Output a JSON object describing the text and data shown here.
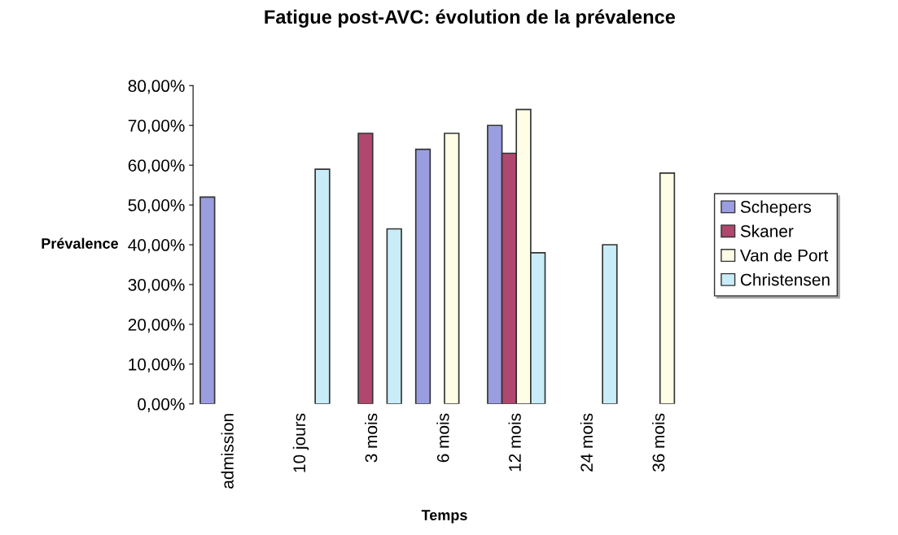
{
  "chart_data": {
    "type": "bar",
    "title": "Fatigue post-AVC: évolution de la prévalence",
    "xlabel": "Temps",
    "ylabel": "Prévalence",
    "categories": [
      "admission",
      "10 jours",
      "3 mois",
      "6 mois",
      "12 mois",
      "24 mois",
      "36 mois"
    ],
    "series": [
      {
        "name": "Schepers",
        "color": "#9a9ee0",
        "values": [
          52,
          null,
          null,
          64,
          70,
          null,
          null
        ]
      },
      {
        "name": "Skaner",
        "color": "#b0476e",
        "values": [
          null,
          null,
          68,
          null,
          63,
          null,
          null
        ]
      },
      {
        "name": "Van de Port",
        "color": "#fffde6",
        "values": [
          null,
          null,
          null,
          68,
          74,
          null,
          58
        ]
      },
      {
        "name": "Christensen",
        "color": "#c8ecf8",
        "values": [
          null,
          59,
          44,
          null,
          38,
          40,
          null
        ]
      }
    ],
    "ylim": [
      0,
      80
    ],
    "yticks": [
      {
        "value": 0,
        "label": "0,00%"
      },
      {
        "value": 10,
        "label": "10,00%"
      },
      {
        "value": 20,
        "label": "20,00%"
      },
      {
        "value": 30,
        "label": "30,00%"
      },
      {
        "value": 40,
        "label": "40,00%"
      },
      {
        "value": 50,
        "label": "50,00%"
      },
      {
        "value": 60,
        "label": "60,00%"
      },
      {
        "value": 70,
        "label": "70,00%"
      },
      {
        "value": 80,
        "label": "80,00%"
      }
    ],
    "legend": "right",
    "grid": false
  }
}
